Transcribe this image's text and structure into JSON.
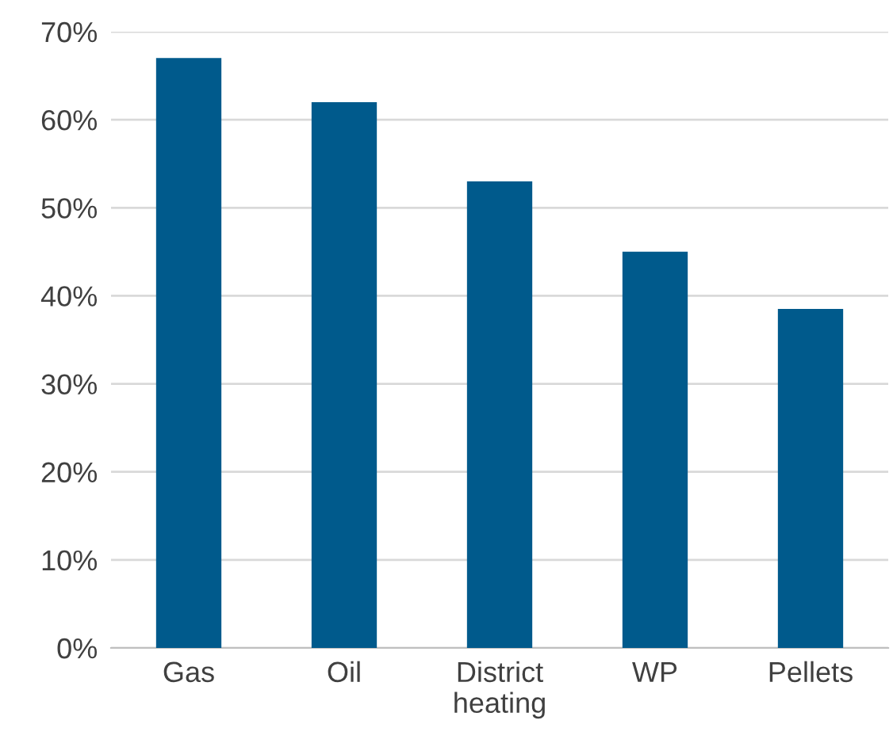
{
  "chart_data": {
    "type": "bar",
    "categories": [
      "Gas",
      "Oil",
      "District\nheating",
      "WP",
      "Pellets"
    ],
    "values": [
      67,
      62,
      53,
      45,
      38.5
    ],
    "color": "#005a8c",
    "ylim": [
      0,
      70
    ],
    "yticks": [
      {
        "value": 0,
        "label": "0%"
      },
      {
        "value": 10,
        "label": "10%"
      },
      {
        "value": 20,
        "label": "20%"
      },
      {
        "value": 30,
        "label": "30%"
      },
      {
        "value": 40,
        "label": "40%"
      },
      {
        "value": 50,
        "label": "50%"
      },
      {
        "value": 60,
        "label": "60%"
      },
      {
        "value": 70,
        "label": "70%"
      }
    ],
    "grid": "y",
    "legend": false
  }
}
